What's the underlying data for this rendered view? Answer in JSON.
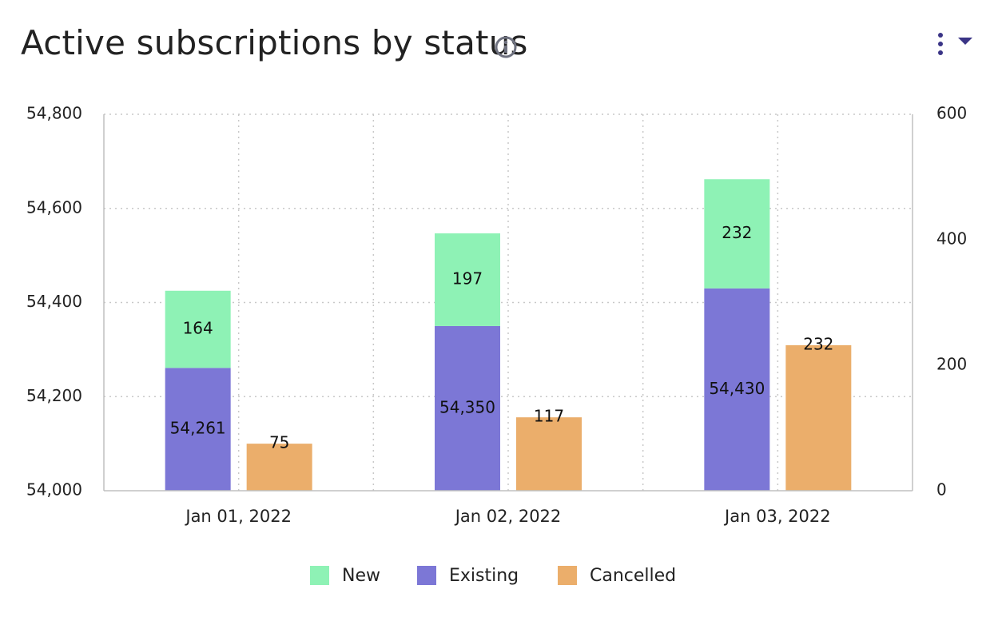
{
  "header": {
    "title": "Active subscriptions by status",
    "info_icon": "info-icon",
    "menu_icon": "vertical-dots-icon",
    "dropdown_icon": "caret-down-icon"
  },
  "colors": {
    "new": "#8ef2b5",
    "existing": "#7c77d6",
    "cancelled": "#ebae6b",
    "accent": "#3a3486",
    "grid": "#c8c8c8",
    "axis": "#c0c0c0"
  },
  "chart_data": {
    "type": "bar",
    "title": "Active subscriptions by status",
    "categories": [
      "Jan 01, 2022",
      "Jan 02, 2022",
      "Jan 03, 2022"
    ],
    "series": [
      {
        "name": "Existing",
        "axis": "left",
        "stack": "active",
        "values": [
          54261,
          54350,
          54430
        ],
        "labels": [
          "54,261",
          "54,350",
          "54,430"
        ]
      },
      {
        "name": "New",
        "axis": "left",
        "stack": "active",
        "values": [
          164,
          197,
          232
        ],
        "labels": [
          "164",
          "197",
          "232"
        ]
      },
      {
        "name": "Cancelled",
        "axis": "right",
        "stack": "cancelled",
        "values": [
          75,
          117,
          232
        ],
        "labels": [
          "75",
          "117",
          "232"
        ]
      }
    ],
    "left_axis": {
      "ylim": [
        54000,
        54800
      ],
      "ticks": [
        54000,
        54200,
        54400,
        54600,
        54800
      ],
      "tick_labels": [
        "54,000",
        "54,200",
        "54,400",
        "54,600",
        "54,800"
      ]
    },
    "right_axis": {
      "ylim": [
        0,
        600
      ],
      "ticks": [
        0,
        200,
        400,
        600
      ],
      "tick_labels": [
        "0",
        "200",
        "400",
        "600"
      ]
    },
    "grid": true,
    "legend": {
      "placement": "bottom",
      "items": [
        "New",
        "Existing",
        "Cancelled"
      ]
    }
  }
}
